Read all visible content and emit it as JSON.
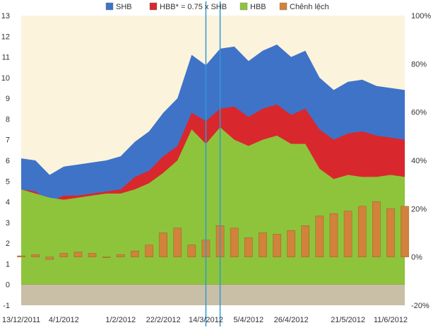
{
  "chart_data": {
    "type": "area",
    "legend": {
      "placement": "top",
      "entries": [
        {
          "label": "SHB",
          "color": "#3F73C8"
        },
        {
          "label": "HBB* = 0.75 x SHB",
          "color": "#D9272E"
        },
        {
          "label": "HBB",
          "color": "#8EC43C"
        },
        {
          "label": "Chênh lệch",
          "color": "#D2823A"
        }
      ]
    },
    "x_tick_labels": [
      "13/12/2011",
      "4/1/2012",
      "1/2/2012",
      "22/2/2012",
      "14/3/2012",
      "5/4/2012",
      "26/4/2012",
      "21/5/2012",
      "11/6/2012"
    ],
    "y_left": {
      "min": -1,
      "max": 13,
      "ticks": [
        "-1",
        "0",
        "1",
        "2",
        "3",
        "4",
        "5",
        "6",
        "7",
        "8",
        "9",
        "10",
        "11",
        "12",
        "13"
      ]
    },
    "y_right": {
      "min": -20,
      "max": 100,
      "ticks": [
        "-20%",
        "0%",
        "20%",
        "40%",
        "60%",
        "80%",
        "100%"
      ],
      "unit": "%"
    },
    "x": [
      "13/12/2011",
      "21/12/2011",
      "29/12/2011",
      "4/1/2012",
      "11/1/2012",
      "18/1/2012",
      "25/1/2012",
      "1/2/2012",
      "8/2/2012",
      "15/2/2012",
      "22/2/2012",
      "29/2/2012",
      "7/3/2012",
      "14/3/2012",
      "21/3/2012",
      "28/3/2012",
      "5/4/2012",
      "12/4/2012",
      "19/4/2012",
      "26/4/2012",
      "3/5/2012",
      "10/5/2012",
      "17/5/2012",
      "21/5/2012",
      "28/5/2012",
      "4/6/2012",
      "11/6/2012",
      "15/6/2012"
    ],
    "series": [
      {
        "name": "SHB",
        "axis": "left",
        "values": [
          6.1,
          6.0,
          5.3,
          5.7,
          5.8,
          5.9,
          6.0,
          6.2,
          6.9,
          7.4,
          8.3,
          9.0,
          11.1,
          10.6,
          11.4,
          11.5,
          10.8,
          11.3,
          11.6,
          11.0,
          11.3,
          10.0,
          9.4,
          9.8,
          9.9,
          9.6,
          9.5,
          9.4
        ]
      },
      {
        "name": "HBB* = 0.75 x SHB",
        "axis": "left",
        "values": [
          4.6,
          4.5,
          4.0,
          4.3,
          4.3,
          4.4,
          4.5,
          4.6,
          5.2,
          5.5,
          6.2,
          6.7,
          8.3,
          7.9,
          8.5,
          8.6,
          8.1,
          8.5,
          8.7,
          8.2,
          8.5,
          7.5,
          7.0,
          7.3,
          7.4,
          7.2,
          7.1,
          7.0
        ]
      },
      {
        "name": "HBB",
        "axis": "left",
        "values": [
          4.6,
          4.4,
          4.2,
          4.1,
          4.2,
          4.3,
          4.4,
          4.4,
          4.6,
          4.9,
          5.4,
          6.0,
          7.5,
          6.8,
          7.6,
          7.0,
          6.7,
          7.0,
          7.2,
          6.8,
          6.8,
          5.6,
          5.1,
          5.3,
          5.2,
          5.2,
          5.3,
          5.2
        ]
      },
      {
        "name": "Chênh lệch",
        "axis": "right",
        "type": "bar",
        "values": [
          0.5,
          1.0,
          -1.0,
          1.5,
          2.0,
          1.5,
          0,
          1.0,
          2.5,
          5.0,
          10.0,
          12.0,
          5.0,
          7.0,
          13.0,
          12.0,
          8.0,
          10.0,
          9.5,
          11.0,
          13.0,
          17.0,
          18.0,
          19.0,
          21.0,
          23.0,
          20.0,
          21.0
        ]
      }
    ],
    "background_bands": [
      {
        "label": "",
        "color": "#FBF3DC"
      }
    ],
    "vertical_markers": [
      "14/3/2012",
      "21/3/2012"
    ],
    "grid": false
  }
}
